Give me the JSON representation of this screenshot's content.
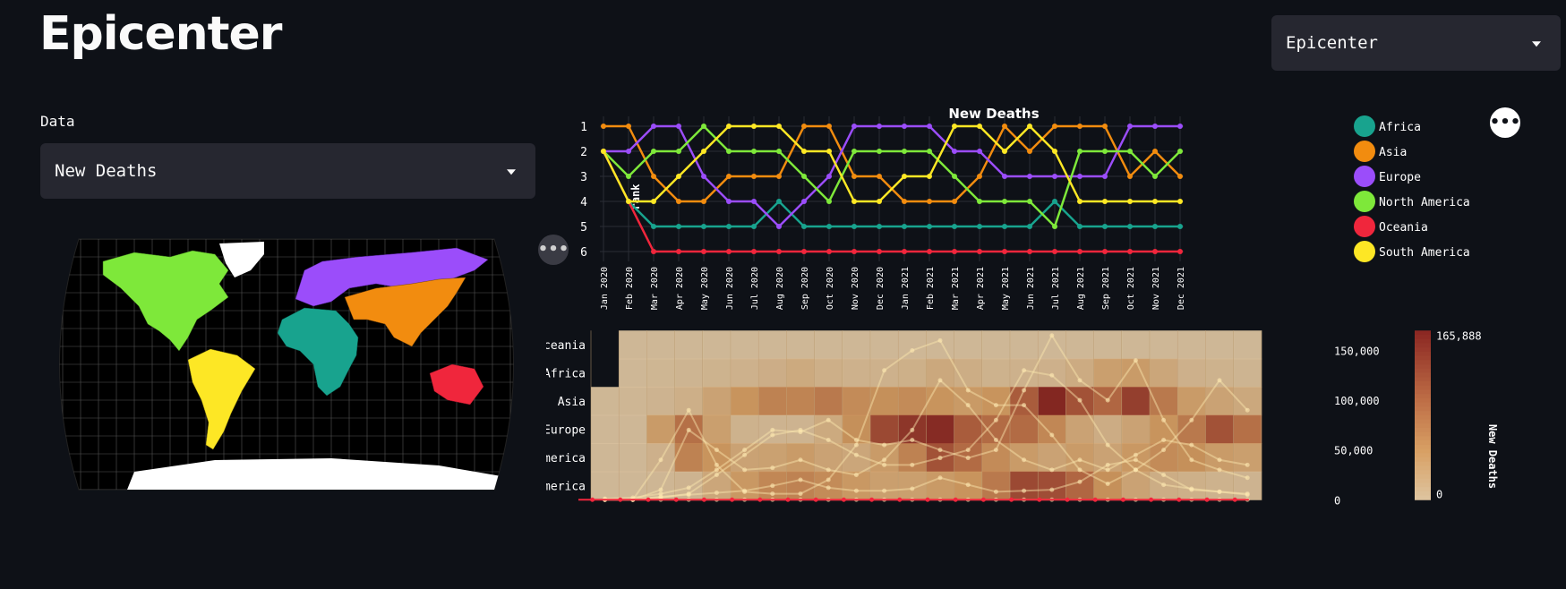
{
  "page": {
    "title": "Epicenter",
    "page_select_value": "Epicenter",
    "data_label": "Data",
    "data_select_value": "New Deaths",
    "more_icon": "ellipsis-icon"
  },
  "map": {
    "regions": [
      {
        "name": "North America",
        "color": "#7ee83a"
      },
      {
        "name": "South America",
        "color": "#fde725"
      },
      {
        "name": "Europe",
        "color": "#9b4dfa"
      },
      {
        "name": "Africa",
        "color": "#18a38e"
      },
      {
        "name": "Asia",
        "color": "#f28c0f"
      },
      {
        "name": "Oceania",
        "color": "#f0263c"
      },
      {
        "name": "Antarctica",
        "color": "#ffffff"
      },
      {
        "name": "Greenland",
        "color": "#ffffff"
      }
    ]
  },
  "chart_data": [
    {
      "type": "line",
      "title": "New Deaths",
      "ylabel": "rank",
      "x": [
        "Jan 2020",
        "Feb 2020",
        "Mar 2020",
        "Apr 2020",
        "May 2020",
        "Jun 2020",
        "Jul 2020",
        "Aug 2020",
        "Sep 2020",
        "Oct 2020",
        "Nov 2020",
        "Dec 2020",
        "Jan 2021",
        "Feb 2021",
        "Mar 2021",
        "Apr 2021",
        "May 2021",
        "Jun 2021",
        "Jul 2021",
        "Aug 2021",
        "Sep 2021",
        "Oct 2021",
        "Nov 2021",
        "Dec 2021"
      ],
      "yticks": [
        1,
        2,
        3,
        4,
        5,
        6
      ],
      "ylim": [
        6.4,
        0.6
      ],
      "legend_position": "right",
      "series": [
        {
          "name": "Africa",
          "color": "#18a38e",
          "values": [
            2,
            4,
            5,
            5,
            5,
            5,
            5,
            4,
            5,
            5,
            5,
            5,
            5,
            5,
            5,
            5,
            5,
            5,
            4,
            5,
            5,
            5,
            5,
            5
          ]
        },
        {
          "name": "Asia",
          "color": "#f28c0f",
          "values": [
            1,
            1,
            3,
            4,
            4,
            3,
            3,
            3,
            1,
            1,
            3,
            3,
            4,
            4,
            4,
            3,
            1,
            2,
            1,
            1,
            1,
            3,
            2,
            3
          ]
        },
        {
          "name": "Europe",
          "color": "#9b4dfa",
          "values": [
            2,
            2,
            1,
            1,
            3,
            4,
            4,
            5,
            4,
            3,
            1,
            1,
            1,
            1,
            2,
            2,
            3,
            3,
            3,
            3,
            3,
            1,
            1,
            1
          ]
        },
        {
          "name": "North America",
          "color": "#7ee83a",
          "values": [
            2,
            3,
            2,
            2,
            1,
            2,
            2,
            2,
            3,
            4,
            2,
            2,
            2,
            2,
            3,
            4,
            4,
            4,
            5,
            2,
            2,
            2,
            3,
            2
          ]
        },
        {
          "name": "Oceania",
          "color": "#f0263c",
          "values": [
            2,
            4,
            6,
            6,
            6,
            6,
            6,
            6,
            6,
            6,
            6,
            6,
            6,
            6,
            6,
            6,
            6,
            6,
            6,
            6,
            6,
            6,
            6,
            6
          ]
        },
        {
          "name": "South America",
          "color": "#fde725",
          "values": [
            2,
            4,
            4,
            3,
            2,
            1,
            1,
            1,
            2,
            2,
            4,
            4,
            3,
            3,
            1,
            1,
            2,
            1,
            2,
            4,
            4,
            4,
            4,
            4
          ]
        }
      ]
    },
    {
      "type": "heatmap",
      "rows": [
        "Oceania",
        "Africa",
        "Asia",
        "Europe",
        "North America",
        "South America"
      ],
      "x": [
        "Jan 2020",
        "Feb 2020",
        "Mar 2020",
        "Apr 2020",
        "May 2020",
        "Jun 2020",
        "Jul 2020",
        "Aug 2020",
        "Sep 2020",
        "Oct 2020",
        "Nov 2020",
        "Dec 2020",
        "Jan 2021",
        "Feb 2021",
        "Mar 2021",
        "Apr 2021",
        "May 2021",
        "Jun 2021",
        "Jul 2021",
        "Aug 2021",
        "Sep 2021",
        "Oct 2021",
        "Nov 2021",
        "Dec 2021"
      ],
      "zmin": 0,
      "zmax": 165888,
      "colorbar_title": "New Deaths",
      "colorbar_ticks": [
        "165,888",
        "0"
      ],
      "y2label": "New Deaths",
      "y2ticks": [
        "150,000",
        "100,000",
        "50,000",
        "0"
      ],
      "values": [
        [
          null,
          0,
          0,
          0,
          0,
          0,
          0,
          0,
          0,
          0,
          0,
          0,
          0,
          0,
          0,
          0,
          0,
          0,
          0,
          0,
          0,
          0,
          0,
          0
        ],
        [
          null,
          0,
          3000,
          5000,
          7000,
          9000,
          14000,
          20000,
          12000,
          9000,
          9000,
          11000,
          22000,
          15000,
          8000,
          9000,
          10000,
          18000,
          35000,
          40000,
          25000,
          10000,
          8000,
          5000
        ],
        [
          1000,
          2000,
          6000,
          12000,
          30000,
          50000,
          70000,
          68000,
          80000,
          60000,
          55000,
          60000,
          50000,
          42000,
          50000,
          110000,
          165000,
          120000,
          100000,
          140000,
          80000,
          40000,
          30000,
          22000
        ],
        [
          0,
          0,
          40000,
          90000,
          35000,
          8000,
          6000,
          6000,
          20000,
          55000,
          130000,
          150000,
          160000,
          110000,
          95000,
          95000,
          65000,
          30000,
          16000,
          30000,
          50000,
          80000,
          120000,
          90000
        ],
        [
          0,
          10,
          10000,
          70000,
          50000,
          30000,
          32000,
          40000,
          30000,
          25000,
          40000,
          70000,
          120000,
          95000,
          60000,
          40000,
          30000,
          40000,
          30000,
          45000,
          60000,
          55000,
          40000,
          35000
        ],
        [
          0,
          0,
          2000,
          6000,
          25000,
          45000,
          65000,
          70000,
          60000,
          45000,
          35000,
          35000,
          42000,
          50000,
          80000,
          130000,
          125000,
          100000,
          55000,
          30000,
          15000,
          11000,
          8000,
          6000
        ]
      ]
    }
  ]
}
